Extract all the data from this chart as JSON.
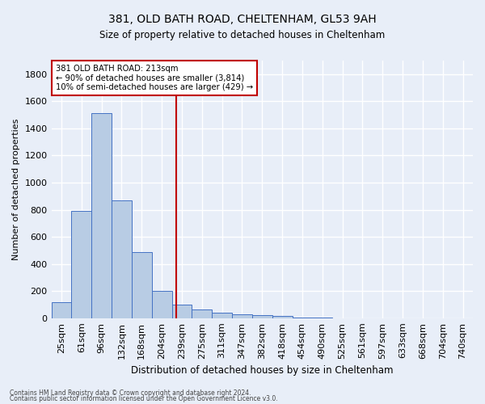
{
  "title": "381, OLD BATH ROAD, CHELTENHAM, GL53 9AH",
  "subtitle": "Size of property relative to detached houses in Cheltenham",
  "xlabel": "Distribution of detached houses by size in Cheltenham",
  "ylabel": "Number of detached properties",
  "categories": [
    "25sqm",
    "61sqm",
    "96sqm",
    "132sqm",
    "168sqm",
    "204sqm",
    "239sqm",
    "275sqm",
    "311sqm",
    "347sqm",
    "382sqm",
    "418sqm",
    "454sqm",
    "490sqm",
    "525sqm",
    "561sqm",
    "597sqm",
    "633sqm",
    "668sqm",
    "704sqm",
    "740sqm"
  ],
  "values": [
    120,
    790,
    1510,
    870,
    490,
    200,
    100,
    65,
    40,
    30,
    25,
    15,
    5,
    2,
    1,
    1,
    1,
    0,
    0,
    0,
    0
  ],
  "bar_color": "#b8cce4",
  "bar_edge_color": "#4472c4",
  "vline_x": 5.72,
  "vline_color": "#c00000",
  "annotation_text": "381 OLD BATH ROAD: 213sqm\n← 90% of detached houses are smaller (3,814)\n10% of semi-detached houses are larger (429) →",
  "annotation_box_color": "#ffffff",
  "annotation_box_edge": "#c00000",
  "footer1": "Contains HM Land Registry data © Crown copyright and database right 2024.",
  "footer2": "Contains public sector information licensed under the Open Government Licence v3.0.",
  "ylim": [
    0,
    1900
  ],
  "yticks": [
    0,
    200,
    400,
    600,
    800,
    1000,
    1200,
    1400,
    1600,
    1800
  ],
  "background_color": "#e8eef8",
  "grid_color": "#ffffff",
  "fig_width": 6.0,
  "fig_height": 5.0,
  "dpi": 100
}
